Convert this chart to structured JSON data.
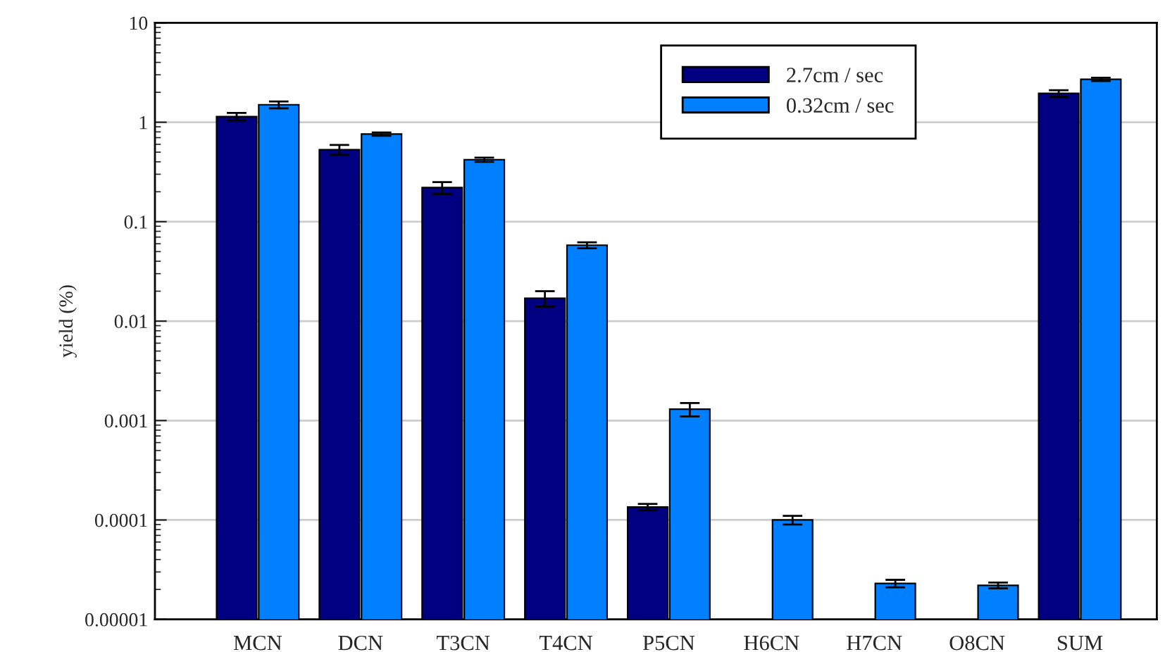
{
  "chart_data": {
    "type": "bar",
    "ylabel": "yield (%)",
    "categories": [
      "MCN",
      "DCN",
      "T3CN",
      "T4CN",
      "P5CN",
      "H6CN",
      "H7CN",
      "O8CN",
      "SUM"
    ],
    "series": [
      {
        "name": "2.7cm / sec",
        "color": "#000080",
        "values": [
          1.14,
          0.53,
          0.22,
          0.017,
          0.000135,
          null,
          null,
          null,
          1.95
        ],
        "errors": [
          0.1,
          0.06,
          0.03,
          0.003,
          1e-05,
          null,
          null,
          null,
          0.15
        ]
      },
      {
        "name": "0.32cm / sec",
        "color": "#0080ff",
        "values": [
          1.5,
          0.76,
          0.42,
          0.058,
          0.0013,
          0.0001,
          2.3e-05,
          2.2e-05,
          2.7
        ],
        "errors": [
          0.12,
          0.03,
          0.02,
          0.004,
          0.0002,
          1e-05,
          2e-06,
          1.5e-06,
          0.1
        ]
      }
    ],
    "log": "y",
    "ylim": [
      1e-05,
      10
    ],
    "yticks": [
      {
        "value": 1e-05,
        "label": "0.00001"
      },
      {
        "value": 0.0001,
        "label": "0.0001"
      },
      {
        "value": 0.001,
        "label": "0.001"
      },
      {
        "value": 0.01,
        "label": "0.01"
      },
      {
        "value": 0.1,
        "label": "0.1"
      },
      1,
      10
    ],
    "grid": "y",
    "legend": "top right"
  }
}
